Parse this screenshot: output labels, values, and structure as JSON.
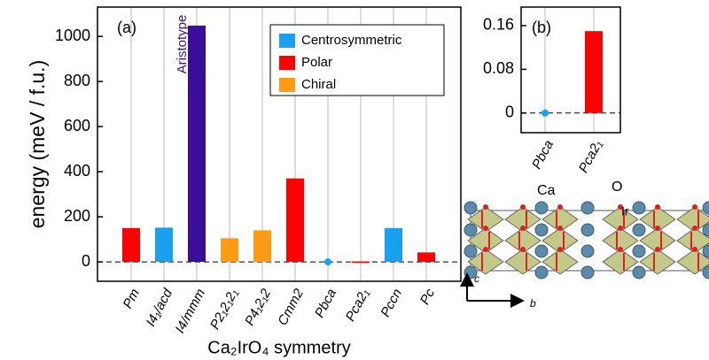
{
  "chart_data": [
    {
      "type": "bar",
      "panel_label": "(a)",
      "y_label": "energy (meV / f.u.)",
      "x_label": "Ca₂IrO₄ symmetry",
      "categories": [
        "Pm",
        "I4₁/acd",
        "I4/mmm",
        "P2₁2₁2₁",
        "P4₁2₁2",
        "Cmm2",
        "Pbca",
        "Pca2₁",
        "Pccn",
        "Pc"
      ],
      "values": [
        150,
        152,
        1048,
        105,
        140,
        370,
        0,
        2,
        150,
        42
      ],
      "colors": [
        "#ff0000",
        "#19a0f0",
        "#3a109a",
        "#ff9a14",
        "#ff9a14",
        "#ff0000",
        "#19a0f0",
        "#ff0000",
        "#19a0f0",
        "#ff0000"
      ],
      "annotation": {
        "text": "Aristotype",
        "category_index": 2,
        "color": "#3a109a"
      },
      "legend": [
        {
          "name": "Centrosymmetric",
          "color": "#19a0f0"
        },
        {
          "name": "Polar",
          "color": "#ff0000"
        },
        {
          "name": "Chiral",
          "color": "#ff9a14"
        }
      ],
      "ylim": [
        -86,
        1130
      ],
      "yticks": [
        0,
        200,
        400,
        600,
        800,
        1000
      ],
      "grid": true
    },
    {
      "type": "bar",
      "panel_label": "(b)",
      "categories": [
        "Pbca",
        "Pca2₁"
      ],
      "values": [
        0,
        0.15
      ],
      "colors": [
        "#19a0f0",
        "#ff0000"
      ],
      "ylim": [
        -0.036,
        0.194
      ],
      "yticks": [
        0,
        0.08,
        0.16
      ],
      "grid": true
    }
  ],
  "structure": {
    "labels": [
      "Ca",
      "O",
      "Ir",
      "c",
      "b"
    ]
  }
}
